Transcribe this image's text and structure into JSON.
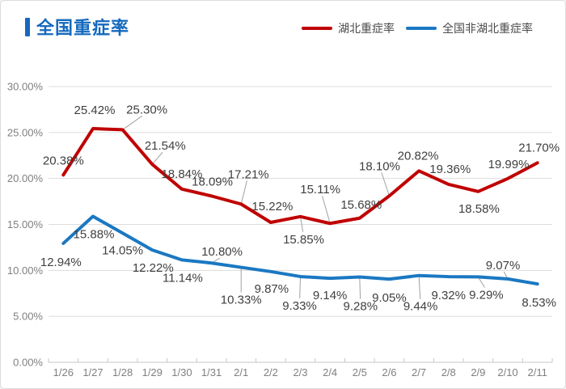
{
  "header": {
    "title": "全国重症率"
  },
  "colors": {
    "title_blue": "#1469be",
    "hubei_red": "#c00000",
    "national_blue": "#1b78c2",
    "grid_line": "#dcdcdc",
    "axis_line": "#c6c6c6",
    "leader_line": "#a0a0a0",
    "data_label_text": "#3f3f3f",
    "axis_label_text": "#7f7f7f"
  },
  "chart_data": {
    "type": "line",
    "title": "全国重症率",
    "xlabel": "",
    "ylabel": "",
    "x": [
      "1/26",
      "1/27",
      "1/28",
      "1/29",
      "1/30",
      "1/31",
      "2/1",
      "2/2",
      "2/3",
      "2/4",
      "2/5",
      "2/6",
      "2/7",
      "2/8",
      "2/9",
      "2/10",
      "2/11"
    ],
    "ylim": [
      0,
      30
    ],
    "y_ticks": [
      0,
      5,
      10,
      15,
      20,
      25,
      30
    ],
    "y_tick_labels": [
      "0.00%",
      "5.00%",
      "10.00%",
      "15.00%",
      "20.00%",
      "25.00%",
      "30.00%"
    ],
    "grid": true,
    "legend_position": "top-right",
    "data_label_format": "0.00%",
    "series": [
      {
        "name": "湖北重症率",
        "color": "#c00000",
        "values": [
          20.38,
          25.42,
          25.3,
          21.54,
          18.84,
          18.09,
          17.21,
          15.22,
          15.85,
          15.11,
          15.68,
          18.1,
          20.82,
          19.36,
          18.58,
          19.99,
          21.7
        ],
        "label_offsets": [
          [
            0,
            -18
          ],
          [
            2,
            -23
          ],
          [
            30,
            -25
          ],
          [
            16,
            -23
          ],
          [
            0,
            -19
          ],
          [
            1,
            -18
          ],
          [
            9,
            -37
          ],
          [
            2,
            -20
          ],
          [
            4,
            28
          ],
          [
            -12,
            -42
          ],
          [
            2,
            -17
          ],
          [
            -12,
            -37
          ],
          [
            -1,
            -19
          ],
          [
            2,
            -19
          ],
          [
            1,
            21
          ],
          [
            1,
            -18
          ],
          [
            2,
            -19
          ]
        ],
        "leaders": [
          false,
          false,
          true,
          true,
          false,
          false,
          true,
          false,
          true,
          true,
          false,
          true,
          false,
          false,
          false,
          false,
          false
        ]
      },
      {
        "name": "全国非湖北重症率",
        "color": "#1b78c2",
        "values": [
          12.94,
          15.88,
          14.05,
          12.22,
          11.14,
          10.8,
          10.33,
          9.87,
          9.33,
          9.14,
          9.28,
          9.05,
          9.44,
          9.32,
          9.29,
          9.07,
          8.53
        ],
        "label_offsets": [
          [
            -3,
            23
          ],
          [
            1,
            22
          ],
          [
            0,
            21
          ],
          [
            1,
            22
          ],
          [
            1,
            22
          ],
          [
            13,
            -14
          ],
          [
            0,
            40
          ],
          [
            1,
            21
          ],
          [
            -1,
            36
          ],
          [
            0,
            21
          ],
          [
            1,
            36
          ],
          [
            0,
            23
          ],
          [
            2,
            38
          ],
          [
            0,
            23
          ],
          [
            10,
            22
          ],
          [
            -6,
            -17
          ],
          [
            2,
            23
          ]
        ],
        "leaders": [
          false,
          false,
          false,
          false,
          false,
          true,
          true,
          false,
          true,
          false,
          true,
          false,
          true,
          false,
          true,
          true,
          false
        ]
      }
    ]
  }
}
